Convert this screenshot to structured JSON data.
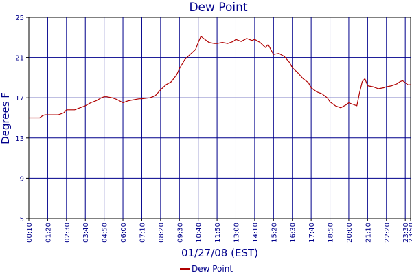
{
  "chart_data": {
    "type": "line",
    "title": "Dew Point",
    "xlabel": "01/27/08 (EST)",
    "ylabel": "Degrees F",
    "ylim": [
      5,
      25
    ],
    "yticks": [
      5,
      9,
      13,
      17,
      21,
      25
    ],
    "xlim": [
      "00:10",
      "23:50"
    ],
    "xticks": [
      "00:10",
      "01:20",
      "02:30",
      "03:40",
      "04:50",
      "06:00",
      "07:10",
      "08:20",
      "09:30",
      "10:40",
      "11:50",
      "13:00",
      "14:10",
      "15:20",
      "16:30",
      "17:40",
      "18:50",
      "20:00",
      "21:10",
      "22:20",
      "23:30",
      "23:50"
    ],
    "grid": true,
    "legend_position": "bottom-center",
    "colors": {
      "series": "#b00000",
      "grid": "#00008b",
      "text": "#00008b",
      "axis": "#000000"
    },
    "series": [
      {
        "name": "Dew Point",
        "x": [
          "00:10",
          "00:30",
          "00:50",
          "01:00",
          "01:10",
          "01:20",
          "01:40",
          "02:00",
          "02:20",
          "02:30",
          "02:40",
          "03:00",
          "03:20",
          "03:40",
          "04:00",
          "04:20",
          "04:40",
          "04:50",
          "05:00",
          "05:20",
          "05:40",
          "06:00",
          "06:20",
          "06:40",
          "07:00",
          "07:10",
          "07:40",
          "08:00",
          "08:20",
          "08:40",
          "09:00",
          "09:20",
          "09:30",
          "09:50",
          "10:10",
          "10:30",
          "10:40",
          "10:50",
          "11:00",
          "11:20",
          "11:40",
          "11:50",
          "12:10",
          "12:30",
          "12:50",
          "13:00",
          "13:20",
          "13:40",
          "14:00",
          "14:10",
          "14:30",
          "14:50",
          "15:00",
          "15:20",
          "15:40",
          "16:00",
          "16:20",
          "16:30",
          "16:50",
          "17:10",
          "17:30",
          "17:40",
          "18:00",
          "18:20",
          "18:40",
          "18:50",
          "19:10",
          "19:30",
          "19:50",
          "20:00",
          "20:20",
          "20:30",
          "20:40",
          "20:50",
          "21:00",
          "21:10",
          "21:30",
          "21:50",
          "22:10",
          "22:20",
          "22:40",
          "23:00",
          "23:10",
          "23:20",
          "23:30",
          "23:40",
          "23:50"
        ],
        "y": [
          15.0,
          15.0,
          15.0,
          15.2,
          15.3,
          15.3,
          15.3,
          15.3,
          15.5,
          15.8,
          15.8,
          15.8,
          16.0,
          16.2,
          16.5,
          16.7,
          17.0,
          17.1,
          17.1,
          17.0,
          16.8,
          16.5,
          16.7,
          16.8,
          16.9,
          16.9,
          17.0,
          17.2,
          17.8,
          18.3,
          18.6,
          19.3,
          19.9,
          20.8,
          21.3,
          21.8,
          22.5,
          23.1,
          22.9,
          22.5,
          22.4,
          22.4,
          22.5,
          22.4,
          22.6,
          22.8,
          22.6,
          22.9,
          22.7,
          22.8,
          22.5,
          22.0,
          22.3,
          21.3,
          21.4,
          21.1,
          20.5,
          20.0,
          19.5,
          18.9,
          18.5,
          18.0,
          17.6,
          17.4,
          17.0,
          16.6,
          16.2,
          16.0,
          16.3,
          16.5,
          16.3,
          16.2,
          17.5,
          18.6,
          18.9,
          18.2,
          18.1,
          17.9,
          18.0,
          18.1,
          18.2,
          18.4,
          18.6,
          18.7,
          18.5,
          18.3,
          18.3
        ]
      }
    ]
  }
}
